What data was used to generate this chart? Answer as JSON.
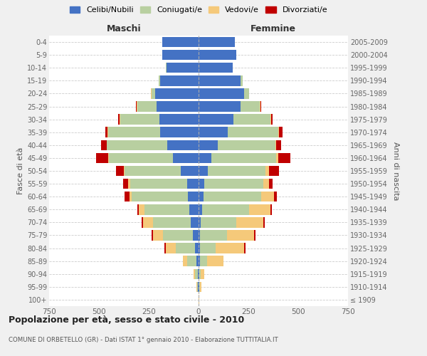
{
  "age_groups": [
    "100+",
    "95-99",
    "90-94",
    "85-89",
    "80-84",
    "75-79",
    "70-74",
    "65-69",
    "60-64",
    "55-59",
    "50-54",
    "45-49",
    "40-44",
    "35-39",
    "30-34",
    "25-29",
    "20-24",
    "15-19",
    "10-14",
    "5-9",
    "0-4"
  ],
  "birth_years": [
    "≤ 1909",
    "1910-1914",
    "1915-1919",
    "1920-1924",
    "1925-1929",
    "1930-1934",
    "1935-1939",
    "1940-1944",
    "1945-1949",
    "1950-1954",
    "1955-1959",
    "1960-1964",
    "1965-1969",
    "1970-1974",
    "1975-1979",
    "1980-1984",
    "1985-1989",
    "1990-1994",
    "1995-1999",
    "2000-2004",
    "2005-2009"
  ],
  "male_celibi": [
    0,
    2,
    5,
    10,
    18,
    30,
    38,
    48,
    52,
    58,
    88,
    128,
    158,
    193,
    198,
    212,
    218,
    193,
    162,
    182,
    182
  ],
  "male_coniugati": [
    0,
    4,
    12,
    48,
    98,
    150,
    190,
    225,
    282,
    286,
    282,
    322,
    302,
    262,
    196,
    96,
    18,
    8,
    3,
    0,
    0
  ],
  "male_vedovi": [
    0,
    4,
    8,
    22,
    50,
    50,
    50,
    26,
    12,
    8,
    6,
    4,
    2,
    2,
    2,
    4,
    2,
    0,
    0,
    0,
    0
  ],
  "male_divorziati": [
    0,
    0,
    0,
    0,
    4,
    4,
    6,
    8,
    26,
    26,
    40,
    60,
    26,
    12,
    8,
    4,
    0,
    0,
    0,
    0,
    0
  ],
  "female_celibi": [
    0,
    4,
    4,
    8,
    8,
    8,
    12,
    18,
    26,
    30,
    46,
    66,
    96,
    146,
    176,
    210,
    230,
    210,
    170,
    190,
    182
  ],
  "female_coniugati": [
    0,
    4,
    8,
    36,
    76,
    136,
    176,
    235,
    288,
    295,
    288,
    322,
    288,
    255,
    186,
    96,
    22,
    12,
    3,
    0,
    0
  ],
  "female_vedovi": [
    2,
    8,
    18,
    80,
    146,
    136,
    136,
    106,
    66,
    30,
    20,
    12,
    6,
    4,
    2,
    4,
    2,
    0,
    0,
    0,
    0
  ],
  "female_divorziati": [
    0,
    0,
    0,
    2,
    4,
    4,
    8,
    8,
    12,
    16,
    50,
    60,
    26,
    16,
    8,
    4,
    0,
    0,
    0,
    0,
    0
  ],
  "color_celibi": "#4472c4",
  "color_coniugati": "#b8cfa0",
  "color_vedovi": "#f5c97a",
  "color_divorziati": "#c00000",
  "title": "Popolazione per età, sesso e stato civile - 2010",
  "subtitle": "COMUNE DI ORBETELLO (GR) - Dati ISTAT 1° gennaio 2010 - Elaborazione TUTTITALIA.IT",
  "xlabel_left": "Maschi",
  "xlabel_right": "Femmine",
  "ylabel_left": "Fasce di età",
  "ylabel_right": "Anni di nascita",
  "xlim": 750,
  "bg_color": "#f0f0f0",
  "plot_bg_color": "#ffffff"
}
